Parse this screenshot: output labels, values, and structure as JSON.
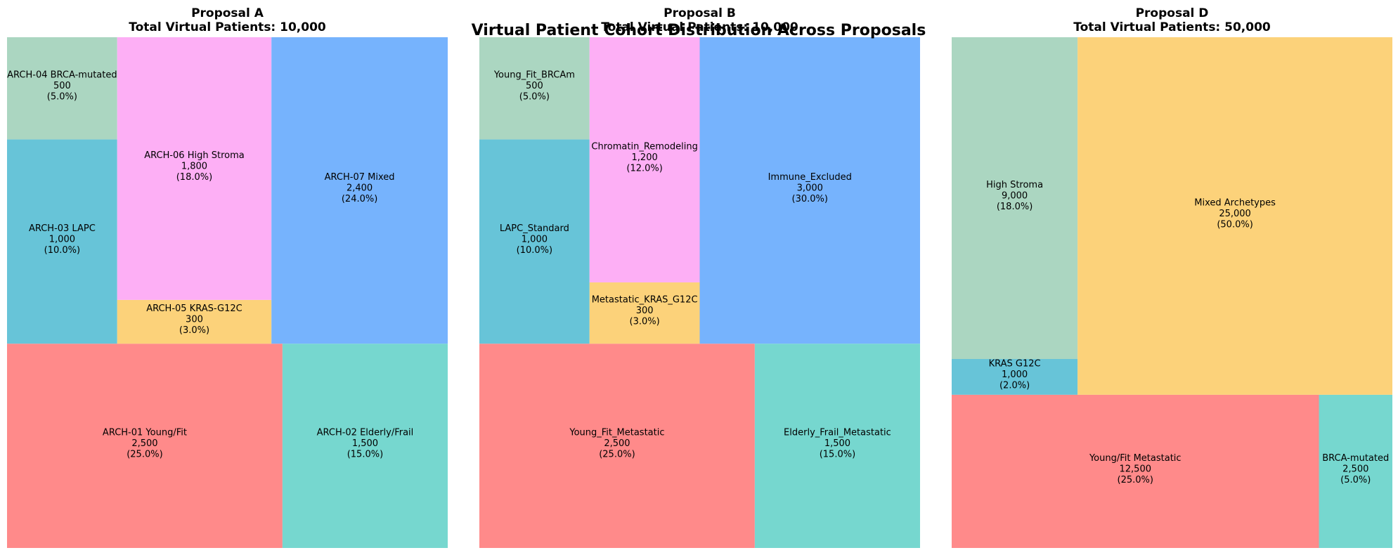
{
  "suptitle": "Virtual Patient Cohort Distribution Across Proposals",
  "colors": {
    "coral": "#ff8a8a",
    "teal": "#76d7cf",
    "sky_blue": "#67c4d8",
    "mint": "#abd6c1",
    "mustard": "#fcd27a",
    "pink": "#fdaff5",
    "cornflower": "#76b3fd"
  },
  "chart_data": [
    {
      "type": "treemap",
      "title_line1": "Proposal A",
      "title_line2": "Total Virtual Patients: 10,000",
      "total": 10000,
      "items": [
        {
          "label": "ARCH-01 Young/Fit",
          "value": 2500,
          "value_text": "2,500",
          "pct_text": "(25.0%)",
          "color": "#ff8a8a"
        },
        {
          "label": "ARCH-02 Elderly/Frail",
          "value": 1500,
          "value_text": "1,500",
          "pct_text": "(15.0%)",
          "color": "#76d7cf"
        },
        {
          "label": "ARCH-03 LAPC",
          "value": 1000,
          "value_text": "1,000",
          "pct_text": "(10.0%)",
          "color": "#67c4d8"
        },
        {
          "label": "ARCH-04 BRCA-mutated",
          "value": 500,
          "value_text": "500",
          "pct_text": "(5.0%)",
          "color": "#abd6c1"
        },
        {
          "label": "ARCH-05 KRAS-G12C",
          "value": 300,
          "value_text": "300",
          "pct_text": "(3.0%)",
          "color": "#fcd27a"
        },
        {
          "label": "ARCH-06 High Stroma",
          "value": 1800,
          "value_text": "1,800",
          "pct_text": "(18.0%)",
          "color": "#fdaff5"
        },
        {
          "label": "ARCH-07 Mixed",
          "value": 2400,
          "value_text": "2,400",
          "pct_text": "(24.0%)",
          "color": "#76b3fd"
        }
      ]
    },
    {
      "type": "treemap",
      "title_line1": "Proposal B",
      "title_line2": "Total Virtual Patients: 10,000",
      "total": 10000,
      "items": [
        {
          "label": "Young_Fit_Metastatic",
          "value": 2500,
          "value_text": "2,500",
          "pct_text": "(25.0%)",
          "color": "#ff8a8a"
        },
        {
          "label": "Elderly_Frail_Metastatic",
          "value": 1500,
          "value_text": "1,500",
          "pct_text": "(15.0%)",
          "color": "#76d7cf"
        },
        {
          "label": "LAPC_Standard",
          "value": 1000,
          "value_text": "1,000",
          "pct_text": "(10.0%)",
          "color": "#67c4d8"
        },
        {
          "label": "Young_Fit_BRCAm",
          "value": 500,
          "value_text": "500",
          "pct_text": "(5.0%)",
          "color": "#abd6c1"
        },
        {
          "label": "Metastatic_KRAS_G12C",
          "value": 300,
          "value_text": "300",
          "pct_text": "(3.0%)",
          "color": "#fcd27a"
        },
        {
          "label": "Chromatin_Remodeling",
          "value": 1200,
          "value_text": "1,200",
          "pct_text": "(12.0%)",
          "color": "#fdaff5"
        },
        {
          "label": "Immune_Excluded",
          "value": 3000,
          "value_text": "3,000",
          "pct_text": "(30.0%)",
          "color": "#76b3fd"
        }
      ]
    },
    {
      "type": "treemap",
      "title_line1": "Proposal D",
      "title_line2": "Total Virtual Patients: 50,000",
      "total": 50000,
      "items": [
        {
          "label": "Young/Fit Metastatic",
          "value": 12500,
          "value_text": "12,500",
          "pct_text": "(25.0%)",
          "color": "#ff8a8a"
        },
        {
          "label": "BRCA-mutated",
          "value": 2500,
          "value_text": "2,500",
          "pct_text": "(5.0%)",
          "color": "#76d7cf"
        },
        {
          "label": "KRAS G12C",
          "value": 1000,
          "value_text": "1,000",
          "pct_text": "(2.0%)",
          "color": "#67c4d8"
        },
        {
          "label": "High Stroma",
          "value": 9000,
          "value_text": "9,000",
          "pct_text": "(18.0%)",
          "color": "#abd6c1"
        },
        {
          "label": "Mixed Archetypes",
          "value": 25000,
          "value_text": "25,000",
          "pct_text": "(50.0%)",
          "color": "#fcd27a"
        }
      ]
    }
  ]
}
